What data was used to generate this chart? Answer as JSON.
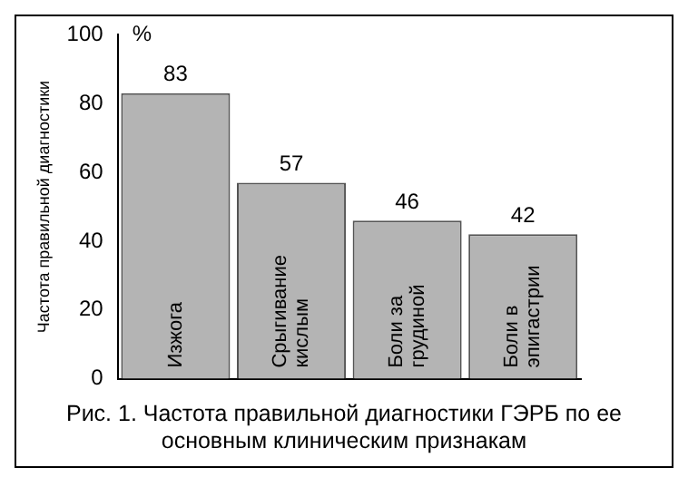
{
  "chart_data": {
    "type": "bar",
    "title": "Рис. 1. Частота правильной диагностики ГЭРБ по ее основным клиническим признакам",
    "ylabel": "Частота правильной диагностики",
    "annotations": [
      "%"
    ],
    "categories": [
      "Изжога",
      "Срыгивание кислым",
      "Боли за грудиной",
      "Боли в эпигастрии"
    ],
    "values": [
      83,
      57,
      46,
      42
    ],
    "color": "#b4b4b4",
    "ylim": [
      0,
      100
    ],
    "yticks": [
      0,
      20,
      40,
      60,
      80,
      100
    ],
    "grid": false,
    "legend": false,
    "data_labels": true
  }
}
